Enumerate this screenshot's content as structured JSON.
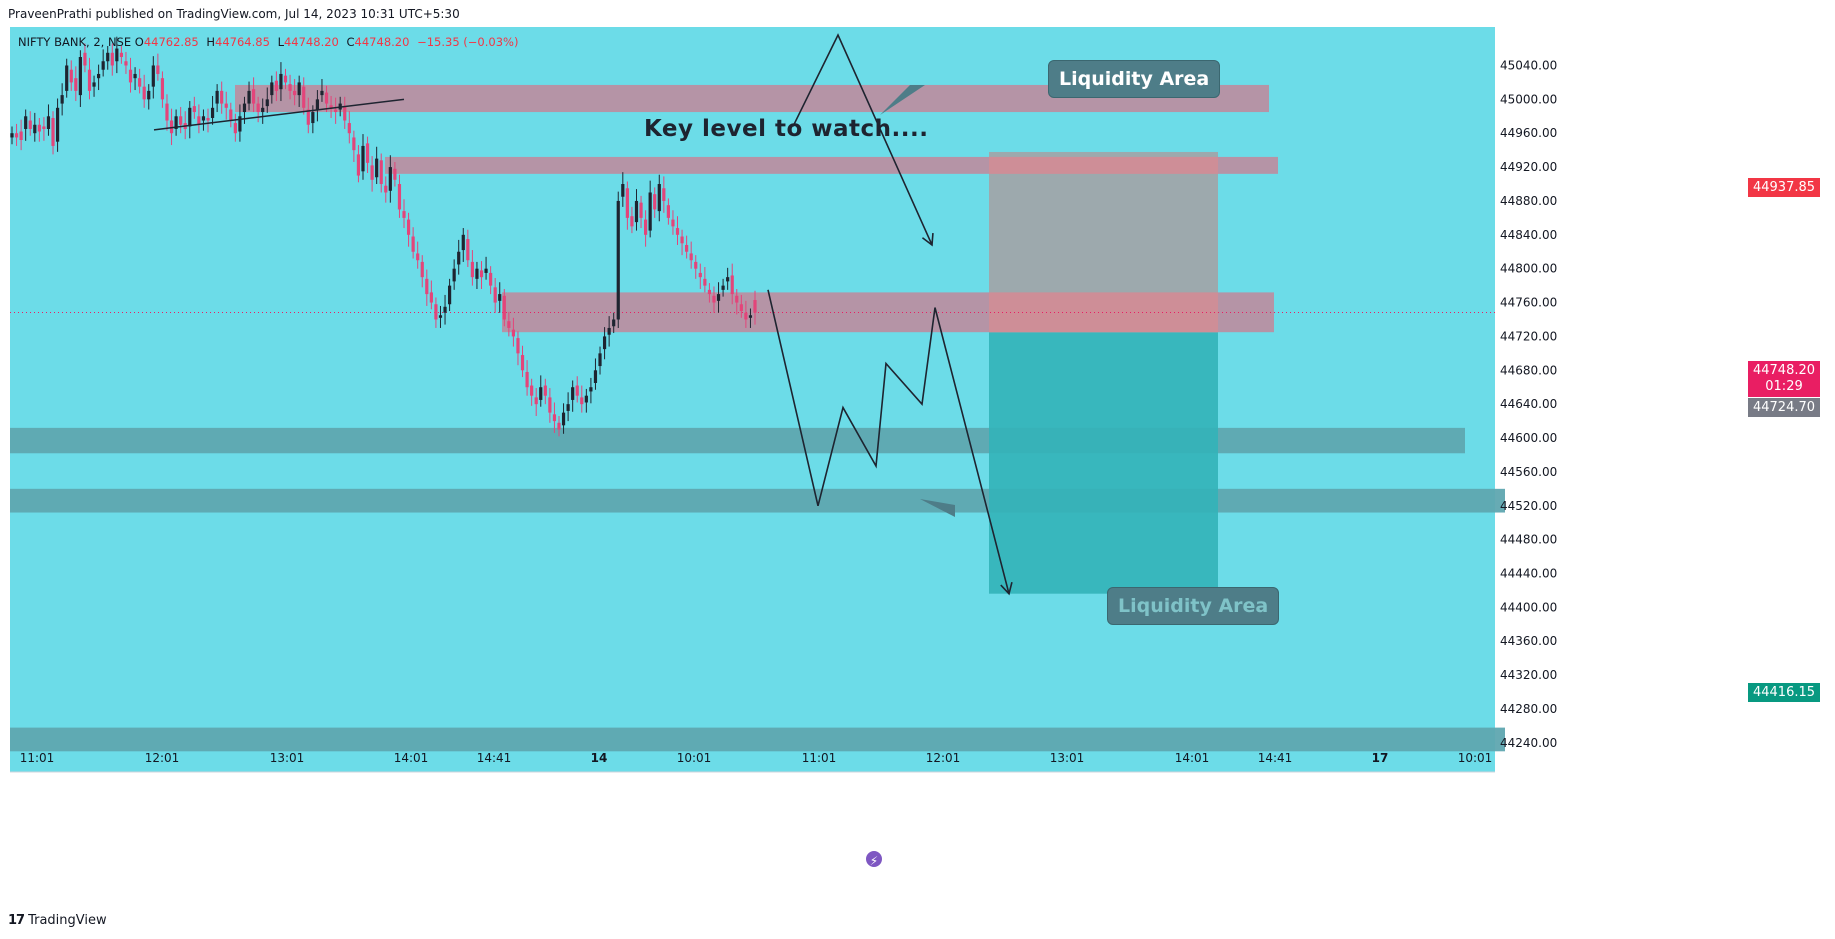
{
  "header": {
    "published": "PraveenPrathi published on TradingView.com, Jul 14, 2023 10:31 UTC+5:30"
  },
  "legend": {
    "symbol": "NIFTY BANK, 2, NSE",
    "open_label": "O",
    "open": "44762.85",
    "high_label": "H",
    "high": "44764.85",
    "low_label": "L",
    "low": "44748.20",
    "close_label": "C",
    "close": "44748.20",
    "change": "−15.35 (−0.03%)"
  },
  "annotations": {
    "key_level": "Key level to watch....",
    "liquidity_top": "Liquidity Area",
    "liquidity_bottom": "Liquidity Area"
  },
  "price_tags": {
    "stop": "44937.85",
    "current": "44748.20",
    "countdown": "01:29",
    "entry": "44724.70",
    "target": "44416.15"
  },
  "footer": {
    "brand": "TradingView",
    "logo": "17"
  },
  "colors": {
    "background": "#6cdce8",
    "zone_pink": "#b98fa2",
    "zone_teal": "#5fa6b0",
    "stop_box": "#a3a3a6",
    "target_box": "#33b3b8",
    "up_candle": "#1e2430",
    "down_candle": "#e3457a"
  },
  "chart_data": {
    "type": "candlestick",
    "symbol": "NIFTY BANK",
    "interval": "2",
    "y_ticks": [
      45040,
      45000,
      44960,
      44920,
      44880,
      44840,
      44800,
      44760,
      44720,
      44680,
      44640,
      44600,
      44560,
      44520,
      44480,
      44440,
      44400,
      44360,
      44320,
      44280,
      44240
    ],
    "ylim": [
      44228,
      45076
    ],
    "x_ticks": [
      "11:01",
      "12:01",
      "13:01",
      "14:01",
      "14:41",
      "14",
      "10:01",
      "11:01",
      "12:01",
      "13:01",
      "14:01",
      "14:41",
      "17",
      "10:01"
    ],
    "x_tick_bold": [
      false,
      false,
      false,
      false,
      false,
      true,
      false,
      false,
      false,
      false,
      false,
      false,
      true,
      false
    ],
    "xlim": [
      0,
      1815
    ],
    "x_tick_positions": [
      27,
      152,
      277,
      401,
      484,
      589,
      684,
      809,
      933,
      1057,
      1182,
      1265,
      1370,
      1465
    ],
    "price_levels": {
      "stop": 44937.85,
      "current": 44748.2,
      "entry": 44724.7,
      "target": 44416.15
    },
    "zones": [
      {
        "kind": "pink",
        "x0": 225,
        "x1": 1259,
        "y_top": 45017,
        "y_bot": 44985
      },
      {
        "kind": "pink",
        "x0": 375,
        "x1": 1268,
        "y_top": 44932,
        "y_bot": 44912
      },
      {
        "kind": "pink",
        "x0": 492,
        "x1": 1264,
        "y_top": 44772,
        "y_bot": 44725
      },
      {
        "kind": "teal",
        "x0": 0,
        "x1": 1455,
        "y_top": 44612,
        "y_bot": 44582
      },
      {
        "kind": "teal",
        "x0": 0,
        "x1": 1495,
        "y_top": 44540,
        "y_bot": 44512
      },
      {
        "kind": "teal",
        "x0": 0,
        "x1": 1495,
        "y_top": 44258,
        "y_bot": 44230
      }
    ],
    "position": {
      "x0": 979,
      "x1": 1208,
      "stop": 44937.85,
      "entry": 44724.7,
      "target": 44416.15
    },
    "trendline": [
      [
        144,
        44964
      ],
      [
        394,
        45000
      ]
    ],
    "path_top": [
      [
        783,
        44968
      ],
      [
        828,
        45076
      ],
      [
        922,
        44828
      ]
    ],
    "path_bottom": [
      [
        758,
        44775
      ],
      [
        808,
        44520
      ],
      [
        833,
        44636
      ],
      [
        866,
        44567
      ],
      [
        876,
        44688
      ],
      [
        912,
        44640
      ],
      [
        925,
        44754
      ],
      [
        999,
        44416
      ]
    ],
    "candles_close": [
      44960,
      44955,
      44952,
      44980,
      44965,
      44970,
      44962,
      44965,
      44980,
      44945,
      44990,
      45005,
      45040,
      45020,
      45010,
      45050,
      45040,
      45010,
      45020,
      45030,
      45045,
      45055,
      45040,
      45060,
      45050,
      45040,
      45020,
      45030,
      45015,
      45000,
      45010,
      45040,
      45030,
      45000,
      44975,
      44960,
      44980,
      44970,
      44965,
      44990,
      44985,
      44970,
      44980,
      44975,
      44990,
      45010,
      44995,
      44990,
      44975,
      44960,
      44980,
      44995,
      45010,
      44995,
      44985,
      44990,
      45000,
      45020,
      45010,
      45030,
      45020,
      45010,
      45005,
      45020,
      44990,
      44970,
      44985,
      45000,
      45010,
      44995,
      44990,
      44985,
      44995,
      44975,
      44960,
      44940,
      44910,
      44945,
      44925,
      44905,
      44930,
      44900,
      44890,
      44920,
      44905,
      44870,
      44860,
      44840,
      44820,
      44810,
      44790,
      44770,
      44760,
      44740,
      44745,
      44755,
      44780,
      44800,
      44820,
      44840,
      44810,
      44790,
      44800,
      44790,
      44800,
      44780,
      44760,
      44770,
      44740,
      44730,
      44720,
      44700,
      44680,
      44660,
      44650,
      44640,
      44660,
      44650,
      44630,
      44620,
      44610,
      44630,
      44640,
      44660,
      44650,
      44640,
      44650,
      44660,
      44680,
      44700,
      44720,
      44730,
      44740,
      44880,
      44900,
      44860,
      44850,
      44880,
      44860,
      44840,
      44890,
      44870,
      44900,
      44880,
      44860,
      44850,
      44840,
      44830,
      44820,
      44810,
      44800,
      44790,
      44780,
      44770,
      44760,
      44770,
      44780,
      44790,
      44770,
      44760,
      44750,
      44740,
      44745,
      44748
    ],
    "candles_open": [
      44955,
      44960,
      44962,
      44965,
      44975,
      44960,
      44970,
      44968,
      44965,
      44978,
      44950,
      44995,
      45010,
      45035,
      45025,
      45005,
      45055,
      45035,
      45015,
      45025,
      45035,
      45045,
      45055,
      45045,
      45055,
      45045,
      45035,
      45025,
      45025,
      45015,
      45000,
      45015,
      45040,
      45025,
      44995,
      44975,
      44965,
      44980,
      44972,
      44968,
      44992,
      44980,
      44975,
      44978,
      44978,
      44995,
      45010,
      44995,
      44988,
      44972,
      44962,
      44985,
      44995,
      45012,
      44995,
      44985,
      44992,
      45005,
      45022,
      45012,
      45028,
      45018,
      45010,
      45005,
      45015,
      44988,
      44972,
      44988,
      45005,
      45008,
      44993,
      44988,
      44988,
      44992,
      44972,
      44955,
      44935,
      44915,
      44948,
      44922,
      44908,
      44928,
      44898,
      44892,
      44918,
      44900,
      44868,
      44858,
      44838,
      44818,
      44808,
      44788,
      44772,
      44758,
      44742,
      44748,
      44758,
      44785,
      44805,
      44822,
      44835,
      44808,
      44788,
      44798,
      44795,
      44795,
      44778,
      44762,
      44768,
      44738,
      44728,
      44718,
      44698,
      44678,
      44662,
      44648,
      44645,
      44662,
      44648,
      44628,
      44618,
      44615,
      44632,
      44645,
      44662,
      44648,
      44642,
      44655,
      44665,
      44685,
      44705,
      44722,
      44732,
      44740,
      44885,
      44895,
      44862,
      44855,
      44878,
      44858,
      44845,
      44888,
      44868,
      44895,
      44875,
      44858,
      44848,
      44838,
      44828,
      44818,
      44808,
      44795,
      44788,
      44775,
      44768,
      44762,
      44775,
      44785,
      44792,
      44768,
      44758,
      44748,
      44742,
      44763
    ]
  }
}
